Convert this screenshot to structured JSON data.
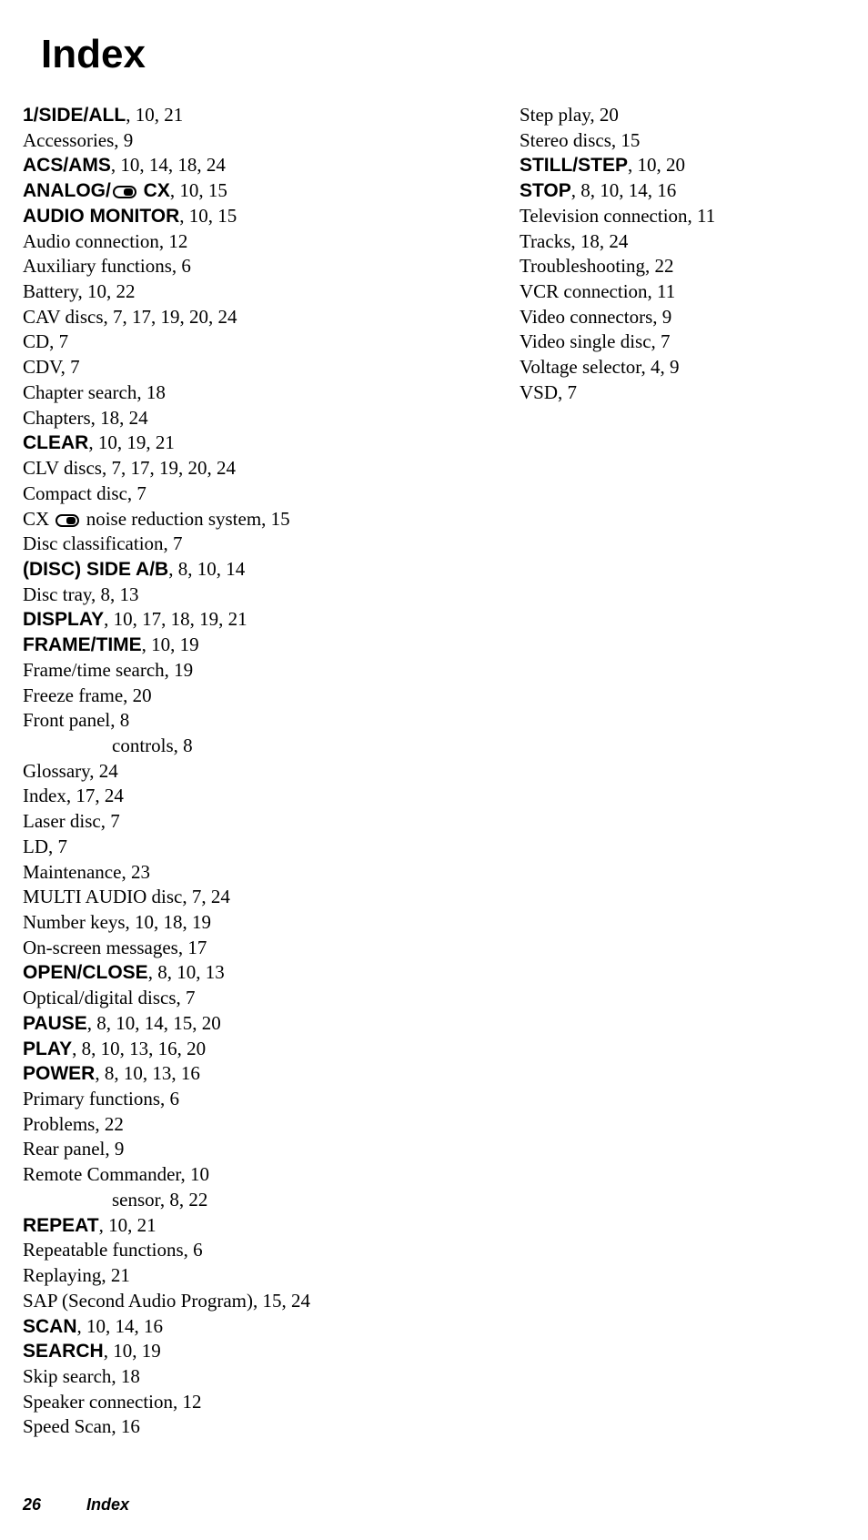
{
  "title": "Index",
  "footer": {
    "page": "26",
    "label": "Index"
  },
  "col1": [
    {
      "bold": true,
      "term": "1/SIDE/ALL",
      "pages": ", 10, 21"
    },
    {
      "bold": false,
      "term": "Accessories, 9",
      "pages": ""
    },
    {
      "bold": true,
      "term": "ACS/AMS",
      "pages": ", 10, 14, 18, 24"
    },
    {
      "bold": true,
      "term": "ANALOG/",
      "icon": true,
      "after_icon": " CX",
      "pages": ", 10, 15"
    },
    {
      "bold": true,
      "term": "AUDIO MONITOR",
      "pages": ", 10, 15"
    },
    {
      "bold": false,
      "term": "Audio connection, 12",
      "pages": ""
    },
    {
      "bold": false,
      "term": "Auxiliary functions, 6",
      "pages": ""
    },
    {
      "bold": false,
      "term": "Battery, 10, 22",
      "pages": ""
    },
    {
      "bold": false,
      "term": "CAV discs, 7, 17, 19, 20, 24",
      "pages": ""
    },
    {
      "bold": false,
      "term": "CD, 7",
      "pages": ""
    },
    {
      "bold": false,
      "term": "CDV, 7",
      "pages": ""
    },
    {
      "bold": false,
      "term": "Chapter search, 18",
      "pages": ""
    },
    {
      "bold": false,
      "term": "Chapters, 18, 24",
      "pages": ""
    },
    {
      "bold": true,
      "term": "CLEAR",
      "pages": ", 10, 19, 21"
    },
    {
      "bold": false,
      "term": "CLV discs, 7, 17, 19, 20, 24",
      "pages": ""
    },
    {
      "bold": false,
      "term": "Compact disc, 7",
      "pages": ""
    },
    {
      "bold": false,
      "term": "CX ",
      "icon": true,
      "after_icon": " noise reduction system, 15",
      "pages": ""
    },
    {
      "bold": false,
      "term": "Disc classification, 7",
      "pages": ""
    },
    {
      "bold": true,
      "term": "(DISC) SIDE A/B",
      "pages": ", 8, 10, 14"
    },
    {
      "bold": false,
      "term": "Disc tray, 8, 13",
      "pages": ""
    },
    {
      "bold": true,
      "term": "DISPLAY",
      "pages": ", 10, 17, 18, 19, 21"
    },
    {
      "bold": true,
      "term": "FRAME/TIME",
      "pages": ", 10, 19"
    },
    {
      "bold": false,
      "term": "Frame/time search, 19",
      "pages": ""
    },
    {
      "bold": false,
      "term": "Freeze frame, 20",
      "pages": ""
    },
    {
      "bold": false,
      "term": "Front panel, 8",
      "pages": ""
    },
    {
      "bold": false,
      "term": "controls, 8",
      "pages": "",
      "sub": true
    },
    {
      "bold": false,
      "term": "Glossary, 24",
      "pages": ""
    },
    {
      "bold": false,
      "term": "Index, 17, 24",
      "pages": ""
    },
    {
      "bold": false,
      "term": "Laser disc, 7",
      "pages": ""
    },
    {
      "bold": false,
      "term": "LD, 7",
      "pages": ""
    },
    {
      "bold": false,
      "term": "Maintenance, 23",
      "pages": ""
    },
    {
      "bold": false,
      "term": "MULTI AUDIO disc, 7, 24",
      "pages": ""
    },
    {
      "bold": false,
      "term": "Number keys, 10, 18, 19",
      "pages": ""
    },
    {
      "bold": false,
      "term": "On-screen messages, 17",
      "pages": ""
    },
    {
      "bold": true,
      "term": "OPEN/CLOSE",
      "pages": ", 8, 10, 13"
    },
    {
      "bold": false,
      "term": "Optical/digital discs, 7",
      "pages": ""
    },
    {
      "bold": true,
      "term": "PAUSE",
      "pages": ", 8, 10, 14, 15, 20"
    },
    {
      "bold": true,
      "term": "PLAY",
      "pages": ", 8, 10, 13, 16, 20"
    },
    {
      "bold": true,
      "term": "POWER",
      "pages": ", 8, 10, 13, 16"
    },
    {
      "bold": false,
      "term": "Primary functions, 6",
      "pages": ""
    },
    {
      "bold": false,
      "term": "Problems, 22",
      "pages": ""
    },
    {
      "bold": false,
      "term": "Rear panel, 9",
      "pages": ""
    },
    {
      "bold": false,
      "term": "Remote Commander, 10",
      "pages": ""
    },
    {
      "bold": false,
      "term": "sensor, 8, 22",
      "pages": "",
      "sub": true
    },
    {
      "bold": true,
      "term": "REPEAT",
      "pages": ", 10, 21"
    },
    {
      "bold": false,
      "term": "Repeatable functions, 6",
      "pages": ""
    },
    {
      "bold": false,
      "term": "Replaying, 21",
      "pages": ""
    },
    {
      "bold": false,
      "term": "SAP (Second Audio Program), 15, 24",
      "pages": ""
    },
    {
      "bold": true,
      "term": "SCAN",
      "pages": ", 10, 14, 16"
    },
    {
      "bold": true,
      "term": "SEARCH",
      "pages": ", 10, 19"
    },
    {
      "bold": false,
      "term": "Skip search, 18",
      "pages": ""
    },
    {
      "bold": false,
      "term": "Speaker connection, 12",
      "pages": ""
    },
    {
      "bold": false,
      "term": "Speed Scan, 16",
      "pages": ""
    }
  ],
  "col2": [
    {
      "bold": false,
      "term": "Step play, 20",
      "pages": ""
    },
    {
      "bold": false,
      "term": "Stereo discs, 15",
      "pages": ""
    },
    {
      "bold": true,
      "term": "STILL/STEP",
      "pages": ", 10, 20"
    },
    {
      "bold": true,
      "term": "STOP",
      "pages": ", 8, 10, 14, 16"
    },
    {
      "bold": false,
      "term": "Television connection, 11",
      "pages": ""
    },
    {
      "bold": false,
      "term": "Tracks, 18, 24",
      "pages": ""
    },
    {
      "bold": false,
      "term": "Troubleshooting, 22",
      "pages": ""
    },
    {
      "bold": false,
      "term": "VCR connection, 11",
      "pages": ""
    },
    {
      "bold": false,
      "term": "Video connectors, 9",
      "pages": ""
    },
    {
      "bold": false,
      "term": "Video single disc, 7",
      "pages": ""
    },
    {
      "bold": false,
      "term": "Voltage selector,  4, 9",
      "pages": ""
    },
    {
      "bold": false,
      "term": "VSD, 7",
      "pages": ""
    }
  ]
}
